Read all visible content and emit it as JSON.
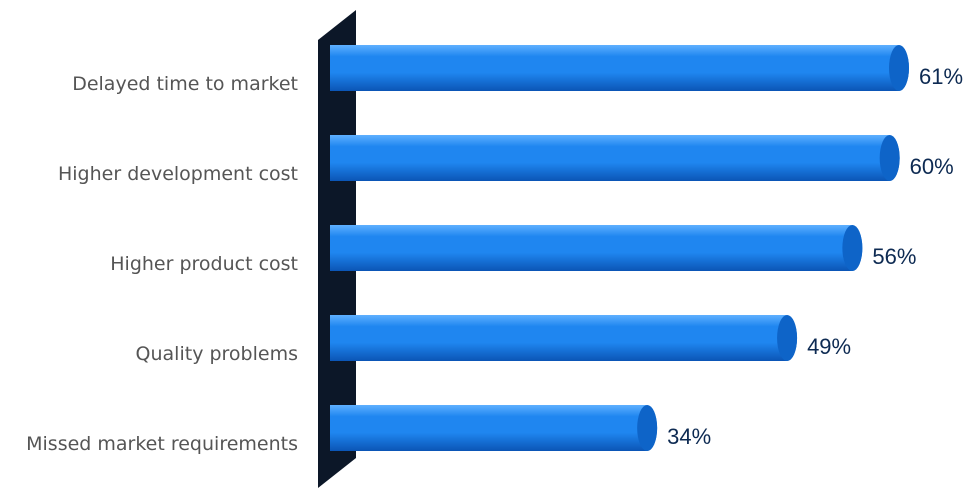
{
  "chart_data": {
    "type": "bar",
    "orientation": "horizontal",
    "style": "3d-cylinder",
    "categories": [
      "Delayed time to market",
      "Higher development cost",
      "Higher product cost",
      "Quality problems",
      "Missed market requirements"
    ],
    "values": [
      61,
      60,
      56,
      49,
      34
    ],
    "value_labels": [
      "61%",
      "60%",
      "56%",
      "49%",
      "34%"
    ],
    "unit": "%",
    "xlim": [
      0,
      65
    ],
    "grid": false,
    "legend": "none",
    "colors": {
      "bar": "#1f86f0",
      "bar_highlight": "#5fb0ff",
      "bar_shadow": "#0b55b5",
      "bar_cap": "#0e64c8",
      "wall": "#0c1728",
      "value_text": "#0d2a52",
      "category_text": "#555555"
    }
  }
}
